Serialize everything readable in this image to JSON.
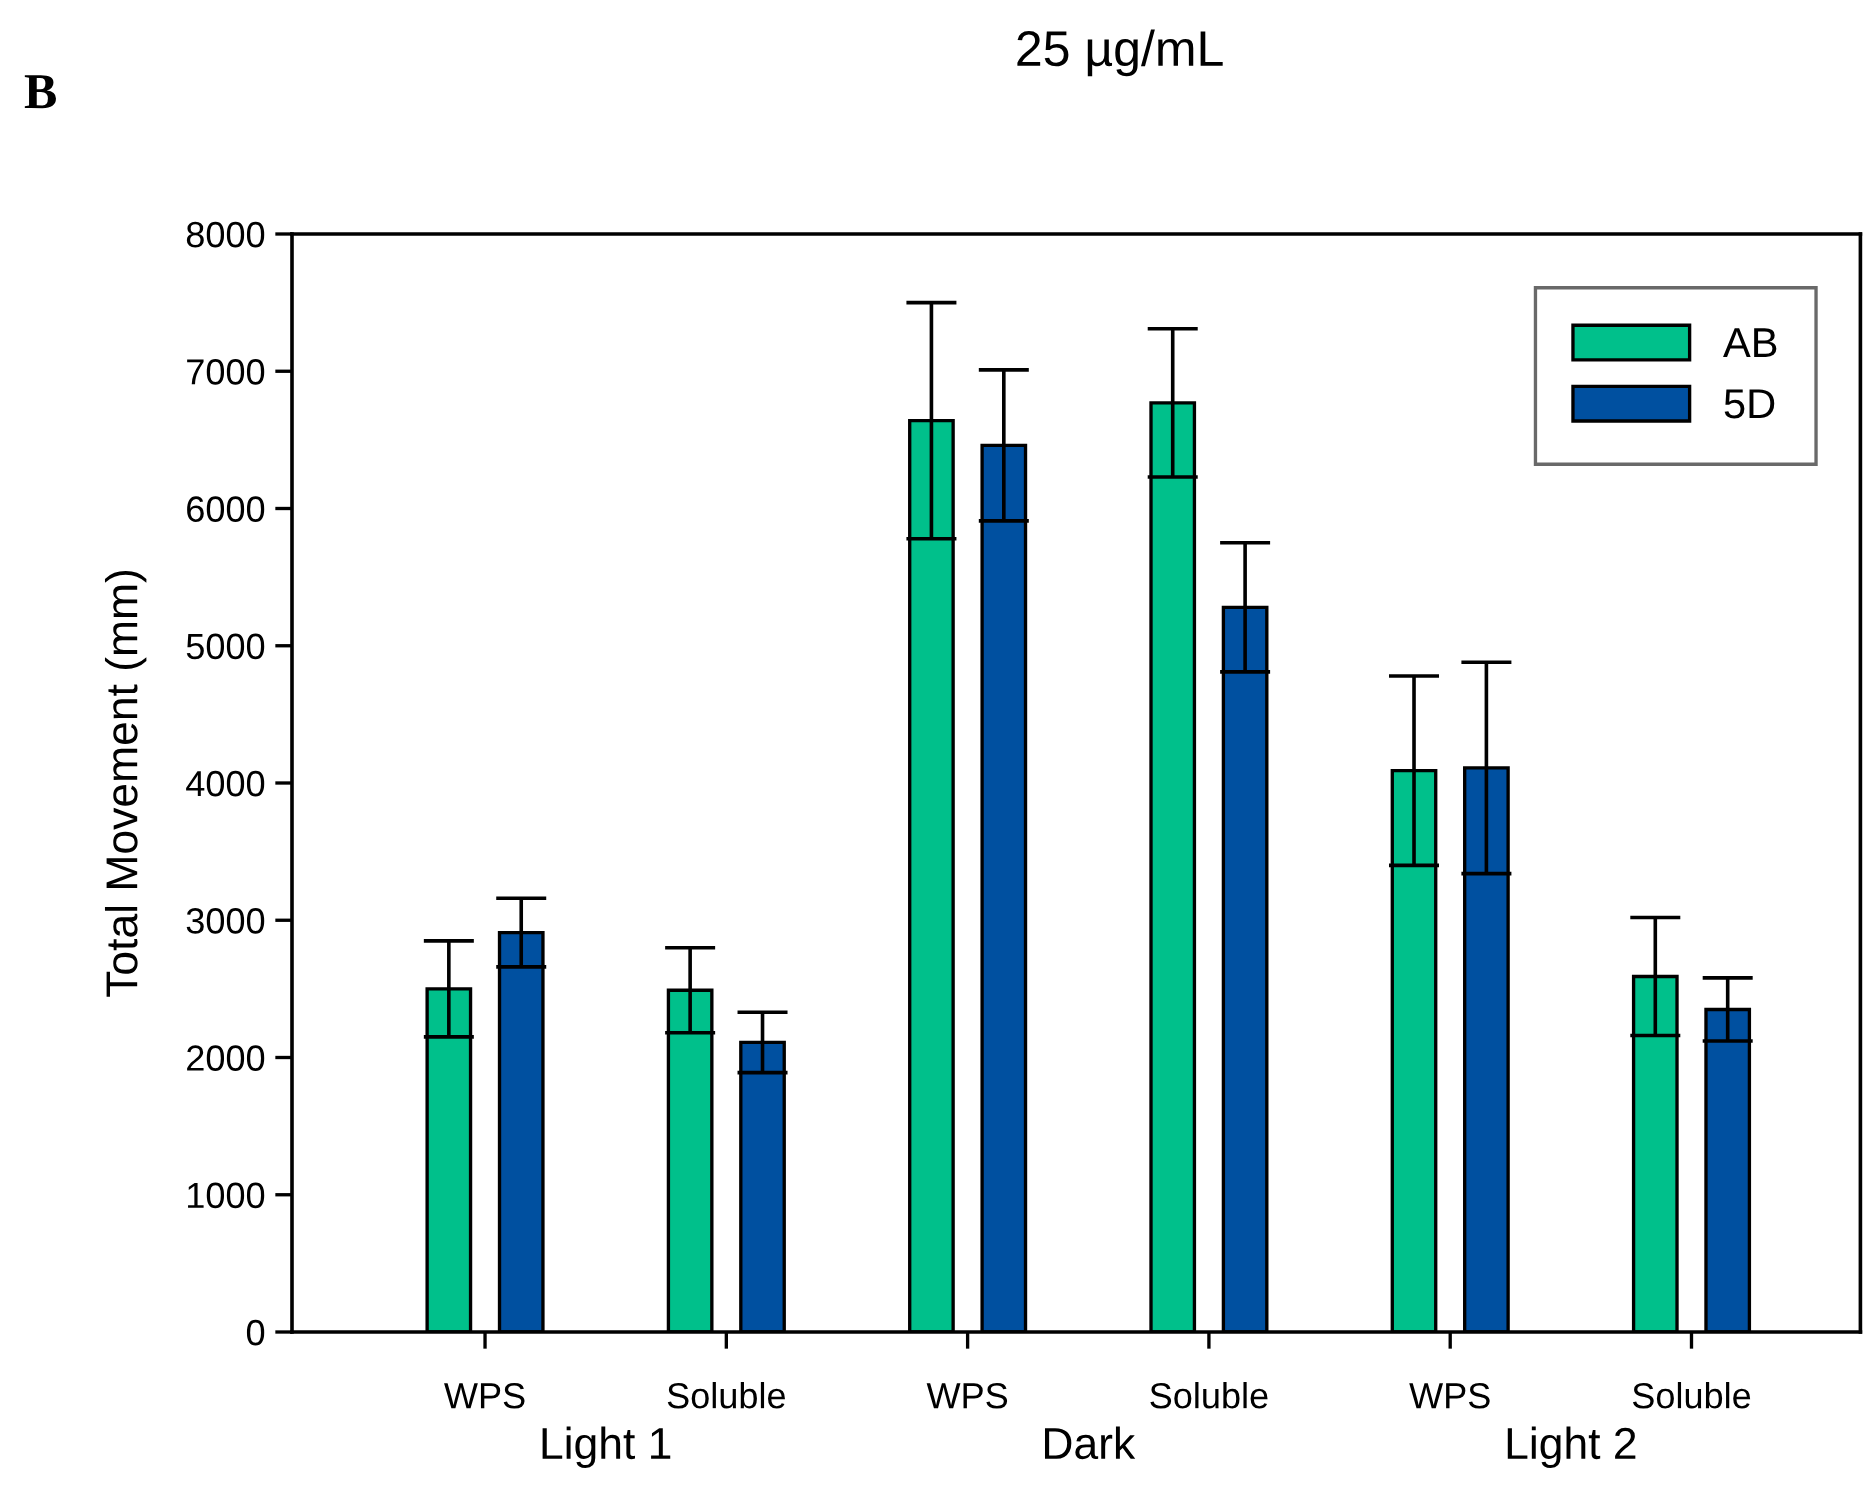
{
  "chart_data": {
    "type": "bar",
    "title": "25 µg/mL",
    "ylabel": "Total Movement (mm)",
    "annotations": [
      "B",
      "Light 1",
      "Dark",
      "Light 2"
    ],
    "categories": [
      "WPS",
      "Soluble",
      "WPS",
      "Soluble",
      "WPS",
      "Soluble"
    ],
    "series": [
      {
        "name": "AB",
        "color": "#00c08b",
        "values": [
          2500,
          2490,
          6640,
          6770,
          4090,
          2590
        ],
        "errors": [
          350,
          310,
          860,
          540,
          690,
          430
        ]
      },
      {
        "name": "5D",
        "color": "#0050a0",
        "values": [
          2910,
          2110,
          6460,
          5280,
          4110,
          2350
        ],
        "errors": [
          250,
          220,
          550,
          470,
          770,
          230
        ]
      }
    ],
    "ylim": [
      0,
      8000
    ],
    "yticks": [
      0,
      1000,
      2000,
      3000,
      4000,
      5000,
      6000,
      7000,
      8000
    ],
    "grid": false,
    "legend": "top right"
  }
}
